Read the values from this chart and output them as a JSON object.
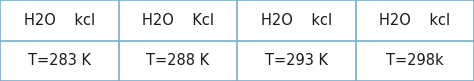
{
  "columns": [
    {
      "header": "H2O    kcl",
      "sub": "T=283 K"
    },
    {
      "header": "H2O    Kcl",
      "sub": "T=288 K"
    },
    {
      "header": "H2O    kcl",
      "sub": "T=293 K"
    },
    {
      "header": "H2O    kcl",
      "sub": "T=298k"
    }
  ],
  "bg_color": "#ffffff",
  "border_color": "#7aacce",
  "text_color": "#1a1a1a",
  "header_fontsize": 10.5,
  "sub_fontsize": 10.5,
  "fig_width": 4.74,
  "fig_height": 0.81,
  "left_border_color": "#a8c8e0",
  "right_border_color": "#a8c8e0"
}
